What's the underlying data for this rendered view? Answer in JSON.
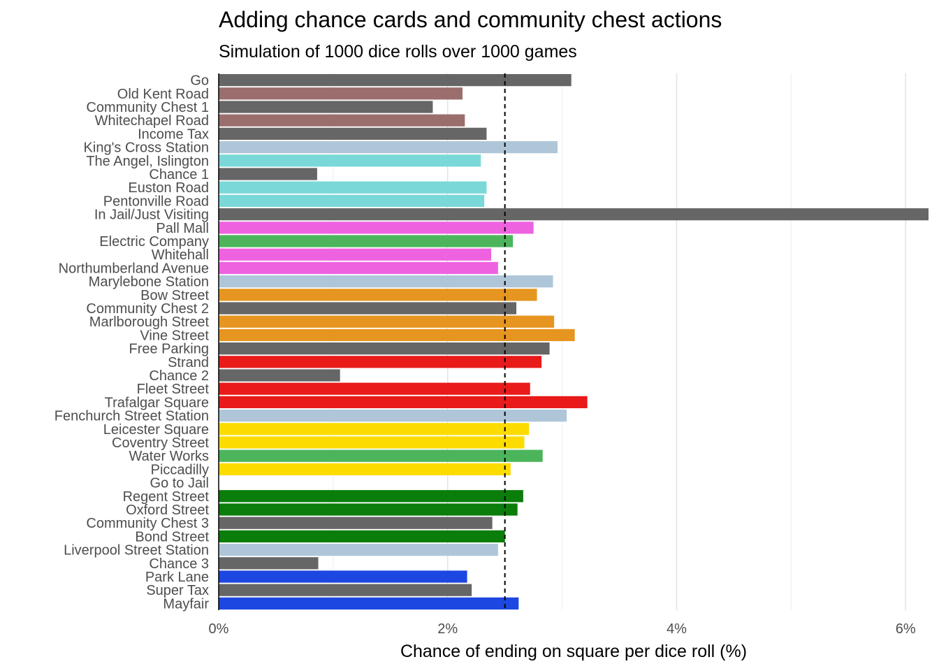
{
  "chart_data": {
    "type": "bar",
    "orientation": "horizontal",
    "title": "Adding chance cards and community chest actions",
    "subtitle": "Simulation of 1000 dice rolls over 1000 games",
    "xlabel": "Chance of ending on square per dice roll (%)",
    "ylabel": "",
    "xlim": [
      0,
      6.2
    ],
    "xticks": [
      0,
      2,
      4,
      6
    ],
    "xtick_labels": [
      "0%",
      "2%",
      "4%",
      "6%"
    ],
    "grid": "vertical",
    "reference_line": {
      "value": 2.5,
      "style": "dashed"
    },
    "categories": [
      "Go",
      "Old Kent Road",
      "Community Chest 1",
      "Whitechapel Road",
      "Income Tax",
      "King's Cross Station",
      "The Angel, Islington",
      "Chance 1",
      "Euston Road",
      "Pentonville Road",
      "In Jail/Just Visiting",
      "Pall Mall",
      "Electric Company",
      "Whitehall",
      "Northumberland Avenue",
      "Marylebone Station",
      "Bow Street",
      "Community Chest 2",
      "Marlborough Street",
      "Vine Street",
      "Free Parking",
      "Strand",
      "Chance 2",
      "Fleet Street",
      "Trafalgar Square",
      "Fenchurch Street Station",
      "Leicester Square",
      "Coventry Street",
      "Water Works",
      "Piccadilly",
      "Go to Jail",
      "Regent Street",
      "Oxford Street",
      "Community Chest 3",
      "Bond Street",
      "Liverpool Street Station",
      "Chance 3",
      "Park Lane",
      "Super Tax",
      "Mayfair"
    ],
    "values": [
      3.08,
      2.13,
      1.87,
      2.15,
      2.34,
      2.96,
      2.29,
      0.86,
      2.34,
      2.32,
      6.2,
      2.75,
      2.57,
      2.38,
      2.44,
      2.92,
      2.78,
      2.6,
      2.93,
      3.11,
      2.89,
      2.82,
      1.06,
      2.72,
      3.22,
      3.04,
      2.71,
      2.67,
      2.83,
      2.55,
      0,
      2.66,
      2.61,
      2.39,
      2.5,
      2.44,
      0.87,
      2.17,
      2.21,
      2.62
    ],
    "colors": [
      "#666666",
      "#9b6e6e",
      "#666666",
      "#9b6e6e",
      "#666666",
      "#aec6d8",
      "#7bd8d8",
      "#666666",
      "#7bd8d8",
      "#7bd8d8",
      "#666666",
      "#ee62e0",
      "#4cb55c",
      "#ee62e0",
      "#ee62e0",
      "#aec6d8",
      "#e69520",
      "#666666",
      "#e69520",
      "#e69520",
      "#666666",
      "#e81a1a",
      "#666666",
      "#e81a1a",
      "#e81a1a",
      "#aec6d8",
      "#fcdc00",
      "#fcdc00",
      "#4cb55c",
      "#fcdc00",
      "#666666",
      "#0a7d0a",
      "#0a7d0a",
      "#666666",
      "#0a7d0a",
      "#aec6d8",
      "#666666",
      "#1c47e0",
      "#666666",
      "#1c47e0"
    ]
  }
}
